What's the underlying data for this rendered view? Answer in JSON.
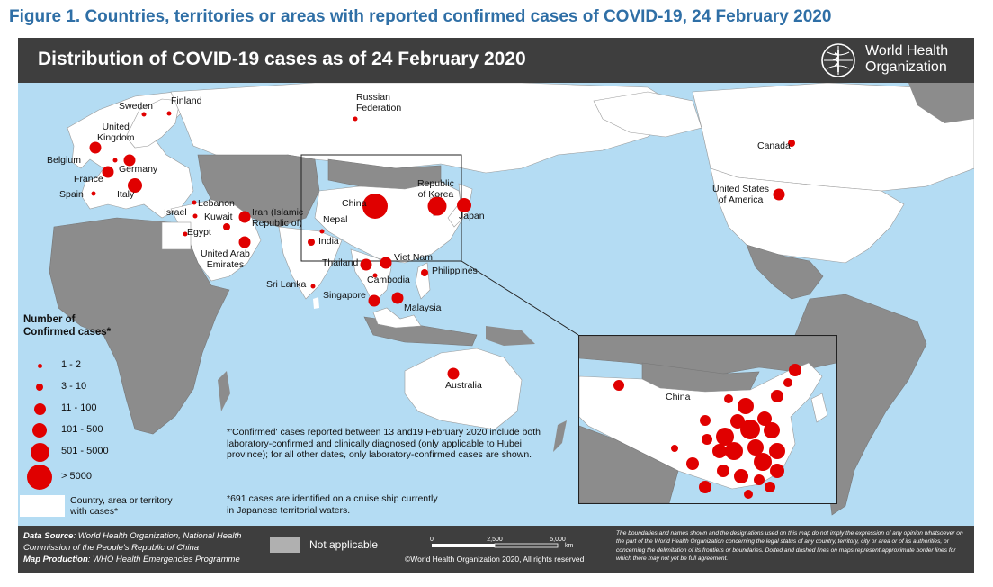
{
  "figure_title": "Figure 1. Countries, territories or areas with reported confirmed cases of COVID-19, 24 February 2020",
  "map_title": "Distribution of COVID-19 cases as of 24 February 2020",
  "logo": {
    "text_line1": "World Health",
    "text_line2": "Organization",
    "icon": "who-emblem-icon"
  },
  "colors": {
    "case_dot": "#e00000",
    "water": "#b4dcf3",
    "affected_land": "#ffffff",
    "other_land": "#8c8c8c",
    "not_applicable": "#b0b0b0",
    "header": "#3e3e3e"
  },
  "country_labels": {
    "sweden": "Sweden",
    "finland": "Finland",
    "russia": "Russian\nFederation",
    "uk": "United\nKingdom",
    "belgium": "Belgium",
    "germany": "Germany",
    "france": "France",
    "spain": "Spain",
    "italy": "Italy",
    "lebanon": "Lebanon",
    "israel": "Israel",
    "kuwait": "Kuwait",
    "iran": "Iran (Islamic\nRepublic of)",
    "egypt": "Egypt",
    "uae": "United Arab\nEmirates",
    "nepal": "Nepal",
    "india": "India",
    "china": "China",
    "korea": "Republic\nof Korea",
    "japan": "Japan",
    "thailand": "Thailand",
    "vietnam": "Viet Nam",
    "cambodia": "Cambodia",
    "philippines": "Philippines",
    "sri_lanka": "Sri Lanka",
    "singapore": "Singapore",
    "malaysia": "Malaysia",
    "australia": "Australia",
    "canada": "Canada",
    "usa": "United States\nof America",
    "inset_china": "China"
  },
  "legend": {
    "title": "Number of\nConfirmed cases*",
    "classes": [
      {
        "label": "1 - 2",
        "level": 1
      },
      {
        "label": "3 - 10",
        "level": 2
      },
      {
        "label": "11 - 100",
        "level": 3
      },
      {
        "label": "101 - 500",
        "level": 4
      },
      {
        "label": "501 - 5000",
        "level": 5
      },
      {
        "label": "> 5000",
        "level": 6
      }
    ],
    "affected_label": "Country, area or territory\nwith cases*"
  },
  "notes": {
    "confirmed": "*'Confirmed' cases reported between 13 and19 February 2020 include both laboratory-confirmed and clinically diagnosed (only applicable to Hubei province); for all other dates, only laboratory-confirmed cases are shown.",
    "cruise": "*691 cases are identified on a cruise ship currently in Japanese territorial waters."
  },
  "footer": {
    "data_source_label": "Data Source",
    "data_source": ": World Health Organization, National Health Commission of the People's Republic of China",
    "map_production_label": "Map Production",
    "map_production": ": WHO Health Emergencies Programme",
    "not_applicable": "Not applicable",
    "scale_ticks": [
      "0",
      "2,500",
      "5,000"
    ],
    "scale_unit": "km",
    "copyright": "©World Health Organization 2020, All rights reserved",
    "disclaimer": "The boundaries and names shown and the designations used on this map do not imply the expression of any opinion whatsoever on the part of the World Health Organization concerning the legal status of any country, territory, city or area or of its authorities, or concerning the delimitation of its frontiers or boundaries. Dotted and dashed lines on maps represent approximate border lines for which there may not yet be full agreement."
  },
  "cases": [
    {
      "name": "Sweden",
      "level": 1
    },
    {
      "name": "Finland",
      "level": 1
    },
    {
      "name": "Russian Federation",
      "level": 1
    },
    {
      "name": "United Kingdom",
      "level": 3
    },
    {
      "name": "Belgium",
      "level": 1
    },
    {
      "name": "Germany",
      "level": 3
    },
    {
      "name": "France",
      "level": 3
    },
    {
      "name": "Spain",
      "level": 1
    },
    {
      "name": "Italy",
      "level": 4
    },
    {
      "name": "Lebanon",
      "level": 1
    },
    {
      "name": "Israel",
      "level": 1
    },
    {
      "name": "Kuwait",
      "level": 2
    },
    {
      "name": "Iran (Islamic Republic of)",
      "level": 3
    },
    {
      "name": "Egypt",
      "level": 1
    },
    {
      "name": "United Arab Emirates",
      "level": 3
    },
    {
      "name": "Nepal",
      "level": 1
    },
    {
      "name": "India",
      "level": 2
    },
    {
      "name": "China",
      "level": 6
    },
    {
      "name": "Republic of Korea",
      "level": 5
    },
    {
      "name": "Japan",
      "level": 4
    },
    {
      "name": "Thailand",
      "level": 3
    },
    {
      "name": "Viet Nam",
      "level": 3
    },
    {
      "name": "Cambodia",
      "level": 1
    },
    {
      "name": "Philippines",
      "level": 2
    },
    {
      "name": "Sri Lanka",
      "level": 1
    },
    {
      "name": "Singapore",
      "level": 3
    },
    {
      "name": "Malaysia",
      "level": 3
    },
    {
      "name": "Australia",
      "level": 3
    },
    {
      "name": "Canada",
      "level": 2
    },
    {
      "name": "United States of America",
      "level": 3
    }
  ]
}
